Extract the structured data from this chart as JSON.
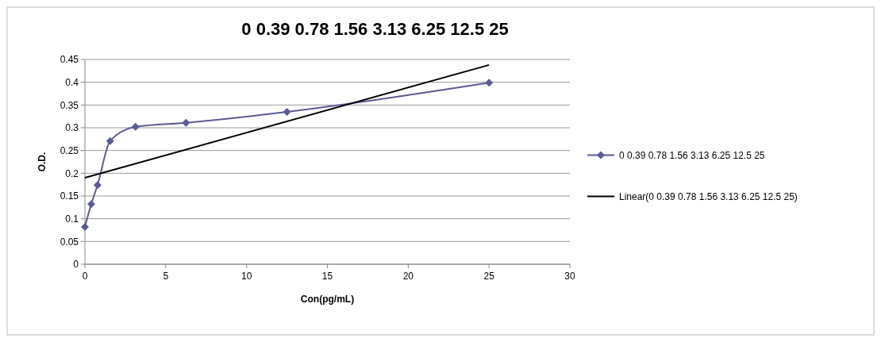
{
  "chart_data": {
    "type": "line",
    "title": "0 0.39 0.78 1.56 3.13 6.25 12.5 25",
    "xlabel": "Con(pg/mL)",
    "ylabel": "O.D.",
    "series": [
      {
        "name": "0 0.39 0.78 1.56 3.13 6.25 12.5 25",
        "color": "#5b5b93",
        "x": [
          0,
          0.39,
          0.78,
          1.56,
          3.13,
          6.25,
          12.5,
          25
        ],
        "values": [
          0.082,
          0.132,
          0.174,
          0.271,
          0.302,
          0.311,
          0.335,
          0.399
        ],
        "marker": "diamond"
      },
      {
        "name": "Linear(0 0.39 0.78 1.56 3.13 6.25 12.5 25)",
        "color": "#000000",
        "x": [
          0,
          25
        ],
        "values": [
          0.19,
          0.438
        ],
        "marker": "none"
      }
    ],
    "xlim": [
      0,
      30
    ],
    "xticks": [
      0,
      5,
      10,
      15,
      20,
      25,
      30
    ],
    "ylim": [
      0,
      0.45
    ],
    "yticks": [
      0,
      0.05,
      0.1,
      0.15,
      0.2,
      0.25,
      0.3,
      0.35,
      0.4,
      0.45
    ],
    "grid": "y",
    "legend": "right"
  }
}
